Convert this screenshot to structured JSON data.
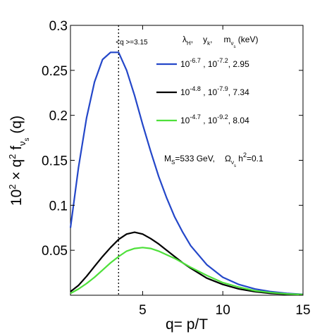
{
  "chart_data": {
    "type": "line",
    "xlabel": "q= p/T",
    "ylabel": {
      "prefix": "10",
      "prefix_sup": "2",
      "middle": " × q",
      "middle_sup": "2",
      "f": " f",
      "sub1": "ν",
      "sub2": "s",
      "suffix": " (q)"
    },
    "xlim": [
      0.5,
      15
    ],
    "ylim": [
      0,
      0.3
    ],
    "xticks": [
      5,
      10,
      15
    ],
    "yticks": [
      0,
      0.05,
      0.1,
      0.15,
      0.2,
      0.25,
      0.3
    ],
    "ytick_labels": [
      "",
      "0.05",
      "0.1",
      "0.15",
      "0.2",
      "0.25",
      "0.3"
    ],
    "grid": false,
    "legend_header": {
      "lambda": "λ",
      "lambda_sub": "H",
      "sep1": ",",
      "y": "y",
      "y_sub": "k",
      "sep2": ",",
      "m": "m",
      "m_sub1": "ν",
      "m_sub2": "s",
      "m_unit": " (keV)"
    },
    "series": [
      {
        "label": {
          "a": "10",
          "a_sup": "-6.7",
          "b": " , 10",
          "b_sup": "-7.2",
          "c": ", 2.95"
        },
        "color": "#2447c9",
        "x": [
          0.5,
          1,
          1.5,
          2,
          2.5,
          3,
          3.5,
          4,
          4.5,
          5,
          5.5,
          6,
          6.5,
          7,
          7.5,
          8,
          9,
          10,
          11,
          12,
          13,
          14,
          15
        ],
        "y": [
          0.075,
          0.142,
          0.197,
          0.237,
          0.262,
          0.27,
          0.27,
          0.25,
          0.222,
          0.19,
          0.16,
          0.132,
          0.108,
          0.087,
          0.07,
          0.055,
          0.034,
          0.02,
          0.012,
          0.007,
          0.004,
          0.002,
          0.001
        ]
      },
      {
        "label": {
          "a": "10",
          "a_sup": "-4.8",
          "b": " , 10",
          "b_sup": "-7.9",
          "c": ", 7.34"
        },
        "color": "#000000",
        "x": [
          0.5,
          1,
          1.5,
          2,
          2.5,
          3,
          3.5,
          4,
          4.5,
          5,
          5.5,
          6,
          6.5,
          7,
          7.5,
          8,
          9,
          10,
          11,
          12,
          13,
          14,
          15
        ],
        "y": [
          0.004,
          0.011,
          0.021,
          0.032,
          0.043,
          0.053,
          0.062,
          0.068,
          0.07,
          0.068,
          0.063,
          0.057,
          0.05,
          0.043,
          0.036,
          0.03,
          0.019,
          0.012,
          0.007,
          0.004,
          0.002,
          0.001,
          0.0005
        ]
      },
      {
        "label": {
          "a": "10",
          "a_sup": "-4.7",
          "b": " , 10",
          "b_sup": "-9.2",
          "c": ", 8.04"
        },
        "color": "#4ee03a",
        "x": [
          0.5,
          1,
          1.5,
          2,
          2.5,
          3,
          3.5,
          4,
          4.5,
          5,
          5.5,
          6,
          6.5,
          7,
          7.5,
          8,
          9,
          10,
          11,
          12,
          13,
          14,
          15
        ],
        "y": [
          0.002,
          0.007,
          0.013,
          0.02,
          0.028,
          0.036,
          0.043,
          0.049,
          0.052,
          0.053,
          0.052,
          0.049,
          0.045,
          0.041,
          0.036,
          0.031,
          0.022,
          0.014,
          0.009,
          0.005,
          0.003,
          0.0015,
          0.0008
        ]
      }
    ],
    "vline": {
      "x": 3.5,
      "style": "dotted",
      "label": "<q >=3.15"
    },
    "annotation": {
      "ms": "M",
      "ms_sub": "S",
      "ms_val": "=533 GeV,",
      "omega": "Ω",
      "omega_sub1": "ν",
      "omega_sub2": "s",
      "omega_h": " h",
      "omega_sup": "2",
      "omega_val": "=0.1"
    }
  }
}
